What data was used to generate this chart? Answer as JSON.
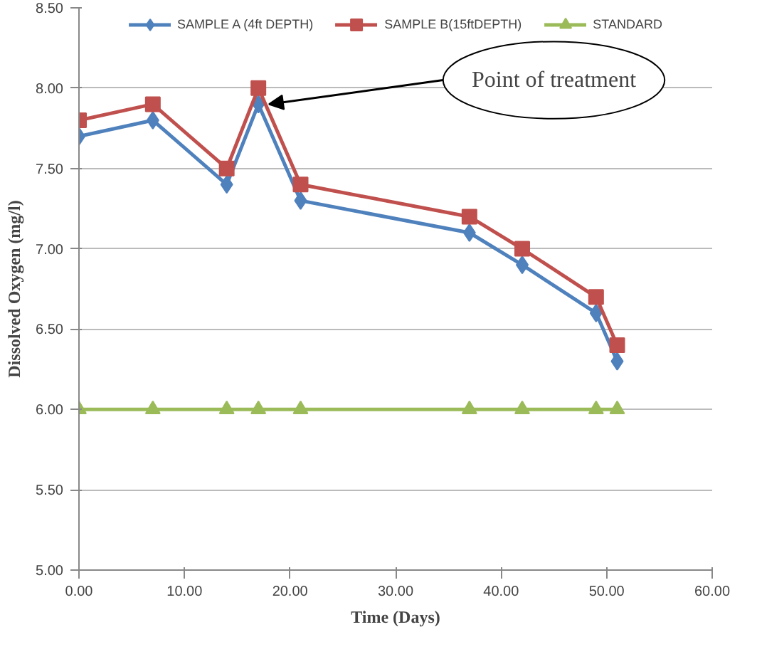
{
  "chart_data": {
    "type": "line",
    "xlabel": "Time (Days)",
    "ylabel": "Dissolved Oxygen (mg/l)",
    "x": [
      0,
      7,
      14,
      17,
      21,
      37,
      42,
      49,
      51
    ],
    "series": [
      {
        "name": "SAMPLE A (4ft DEPTH)",
        "color": "#4f81bd",
        "marker": "diamond",
        "values": [
          7.7,
          7.8,
          7.4,
          7.9,
          7.3,
          7.1,
          6.9,
          6.6,
          6.3
        ]
      },
      {
        "name": "SAMPLE B(15ftDEPTH)",
        "color": "#c0504d",
        "marker": "square",
        "values": [
          7.8,
          7.9,
          7.5,
          8.0,
          7.4,
          7.2,
          7.0,
          6.7,
          6.4
        ]
      },
      {
        "name": "STANDARD",
        "color": "#9bbb59",
        "marker": "triangle",
        "values": [
          6.0,
          6.0,
          6.0,
          6.0,
          6.0,
          6.0,
          6.0,
          6.0,
          6.0
        ]
      }
    ],
    "xlim": [
      0,
      60
    ],
    "xticks": [
      {
        "value": 0,
        "label": "0.00"
      },
      {
        "value": 10,
        "label": "10.00"
      },
      {
        "value": 20,
        "label": "20.00"
      },
      {
        "value": 30,
        "label": "30.00"
      },
      {
        "value": 40,
        "label": "40.00"
      },
      {
        "value": 50,
        "label": "50.00"
      },
      {
        "value": 60,
        "label": "60.00"
      }
    ],
    "ylim": [
      5,
      8.5
    ],
    "yticks": [
      {
        "value": 5,
        "label": "5.00"
      },
      {
        "value": 5.5,
        "label": "5.50"
      },
      {
        "value": 6,
        "label": "6.00"
      },
      {
        "value": 6.5,
        "label": "6.50"
      },
      {
        "value": 7,
        "label": "7.00"
      },
      {
        "value": 7.5,
        "label": "7.50"
      },
      {
        "value": 8,
        "label": "8.00"
      },
      {
        "value": 8.5,
        "label": "8.50"
      }
    ],
    "grid": "y",
    "legend": "top",
    "line_style": "solid",
    "annotations": [
      {
        "text": "Point of treatment",
        "x": 17,
        "y": 7.9
      }
    ]
  }
}
